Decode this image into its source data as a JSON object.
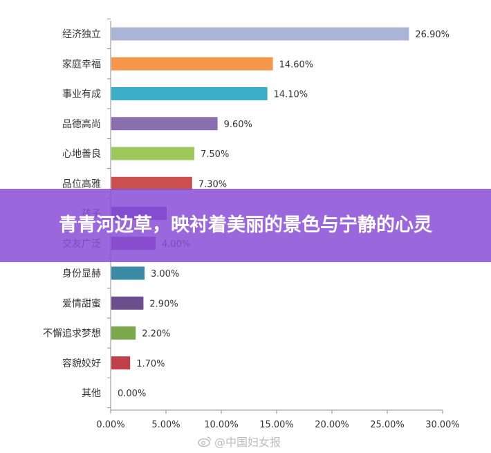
{
  "chart_data": {
    "type": "bar",
    "orientation": "horizontal",
    "categories": [
      "经济独立",
      "家庭幸福",
      "事业有成",
      "品德高尚",
      "心地善良",
      "品位高雅",
      "孩子",
      "交友广泛",
      "身份显赫",
      "爱情甜蜜",
      "不懈追求梦想",
      "容貌姣好",
      "其他"
    ],
    "values": [
      26.9,
      14.6,
      14.1,
      9.6,
      7.5,
      7.3,
      5.0,
      4.0,
      3.0,
      2.9,
      2.2,
      1.7,
      0.0
    ],
    "value_labels": [
      "26.90%",
      "14.60%",
      "14.10%",
      "9.60%",
      "7.50%",
      "7.30%",
      "",
      "4.00%",
      "3.00%",
      "2.90%",
      "2.20%",
      "1.70%",
      "0.00%"
    ],
    "colors": [
      "#a9b4d6",
      "#f5974a",
      "#3aaec9",
      "#8a6fae",
      "#9dc95c",
      "#c9504d",
      "#5a3fb0",
      "#8a3f9c",
      "#3a8aa6",
      "#6a4f8c",
      "#7aa84a",
      "#c0404a",
      "#999999"
    ],
    "xticks": [
      "0.00%",
      "5.00%",
      "10.00%",
      "15.00%",
      "20.00%",
      "25.00%",
      "30.00%"
    ],
    "xlim": [
      0,
      30
    ],
    "title": "",
    "xlabel": "",
    "ylabel": "",
    "grid": false
  },
  "overlay": {
    "headline": "青青河边草，映衬着美丽的景色与宁静的心灵"
  },
  "watermark": {
    "text": "@中国妇女报",
    "icon": "weibo-icon"
  }
}
